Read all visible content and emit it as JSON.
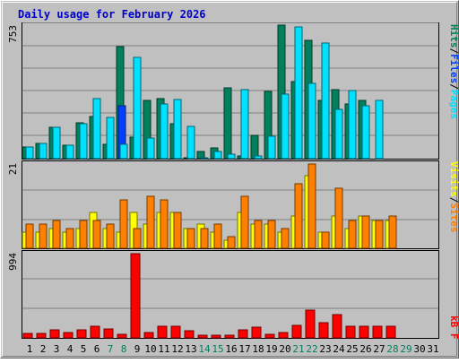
{
  "chart_data": [
    {
      "type": "bar",
      "title": "Daily usage for February 2026",
      "ylabel": "Pages / Files / Hits",
      "ymax_label": "753",
      "ylim": [
        0,
        753
      ],
      "categories": [
        "1",
        "2",
        "3",
        "4",
        "5",
        "6",
        "7",
        "8",
        "9",
        "10",
        "11",
        "12",
        "13",
        "14",
        "15",
        "16",
        "17",
        "18",
        "19",
        "20",
        "21",
        "22",
        "23",
        "24",
        "25",
        "26",
        "27",
        "28",
        "29",
        "30",
        "31"
      ],
      "series": [
        {
          "name": "Hits",
          "values": [
            65,
            85,
            175,
            75,
            200,
            235,
            80,
            620,
            120,
            320,
            330,
            195,
            5,
            40,
            60,
            390,
            15,
            130,
            370,
            740,
            425,
            655,
            320,
            380,
            300,
            320,
            0,
            0,
            0,
            0,
            0
          ]
        },
        {
          "name": "Files",
          "values": [
            0,
            0,
            0,
            0,
            0,
            0,
            0,
            290,
            0,
            0,
            0,
            0,
            0,
            0,
            0,
            0,
            0,
            0,
            0,
            0,
            0,
            0,
            0,
            0,
            0,
            0,
            0,
            0,
            0,
            0,
            0
          ]
        },
        {
          "name": "Pages",
          "values": [
            65,
            85,
            175,
            75,
            195,
            330,
            230,
            80,
            560,
            115,
            300,
            325,
            180,
            5,
            40,
            25,
            380,
            15,
            125,
            355,
            730,
            415,
            640,
            270,
            375,
            290,
            320,
            0,
            0,
            0,
            0
          ]
        }
      ]
    },
    {
      "type": "bar",
      "ylabel": "Sites / Visits",
      "ymax_label": "21",
      "ylim": [
        0,
        21
      ],
      "categories": [
        "1",
        "2",
        "3",
        "4",
        "5",
        "6",
        "7",
        "8",
        "9",
        "10",
        "11",
        "12",
        "13",
        "14",
        "15",
        "16",
        "17",
        "18",
        "19",
        "20",
        "21",
        "22",
        "23",
        "24",
        "25",
        "26",
        "27",
        "28",
        "29",
        "30",
        "31"
      ],
      "series": [
        {
          "name": "Sites",
          "values": [
            4,
            4,
            5,
            4,
            5,
            9,
            5,
            4,
            9,
            6,
            9,
            9,
            5,
            6,
            4,
            2,
            9,
            6,
            6,
            4,
            8,
            18,
            4,
            8,
            5,
            8,
            7,
            7,
            0,
            0,
            0
          ]
        },
        {
          "name": "Visits",
          "values": [
            6,
            6,
            7,
            5,
            7,
            7,
            6,
            12,
            5,
            13,
            12,
            9,
            5,
            5,
            6,
            3,
            13,
            7,
            7,
            5,
            16,
            21,
            4,
            15,
            7,
            8,
            7,
            8,
            0,
            0,
            0
          ]
        }
      ]
    },
    {
      "type": "bar",
      "ylabel": "kB F",
      "ymax_label": "994",
      "ylim": [
        0,
        994
      ],
      "categories": [
        "1",
        "2",
        "3",
        "4",
        "5",
        "6",
        "7",
        "8",
        "9",
        "10",
        "11",
        "12",
        "13",
        "14",
        "15",
        "16",
        "17",
        "18",
        "19",
        "20",
        "21",
        "22",
        "23",
        "24",
        "25",
        "26",
        "27",
        "28",
        "29",
        "30",
        "31"
      ],
      "series": [
        {
          "name": "kB F",
          "values": [
            50,
            50,
            100,
            60,
            100,
            140,
            110,
            40,
            994,
            60,
            140,
            140,
            80,
            30,
            30,
            30,
            90,
            130,
            40,
            60,
            150,
            330,
            180,
            280,
            140,
            140,
            140,
            140,
            0,
            0,
            0
          ]
        }
      ]
    }
  ],
  "legend": {
    "pages": "Pages",
    "files": "Files",
    "hits": "Hits",
    "sites": "Sites",
    "visits": "Visits",
    "kbf": "kB F",
    "separator": "/"
  },
  "weekend_days": [
    "7",
    "8",
    "14",
    "15",
    "21",
    "22",
    "28",
    "29"
  ],
  "colors": {
    "hits": "#00805c",
    "files": "#0040ff",
    "pages": "#00e0ff",
    "sites": "#ff8000",
    "visits": "#ffff00",
    "kbf": "#ff0000",
    "title": "#0000cc",
    "weekend": "#00805c",
    "weekday": "#000000"
  }
}
